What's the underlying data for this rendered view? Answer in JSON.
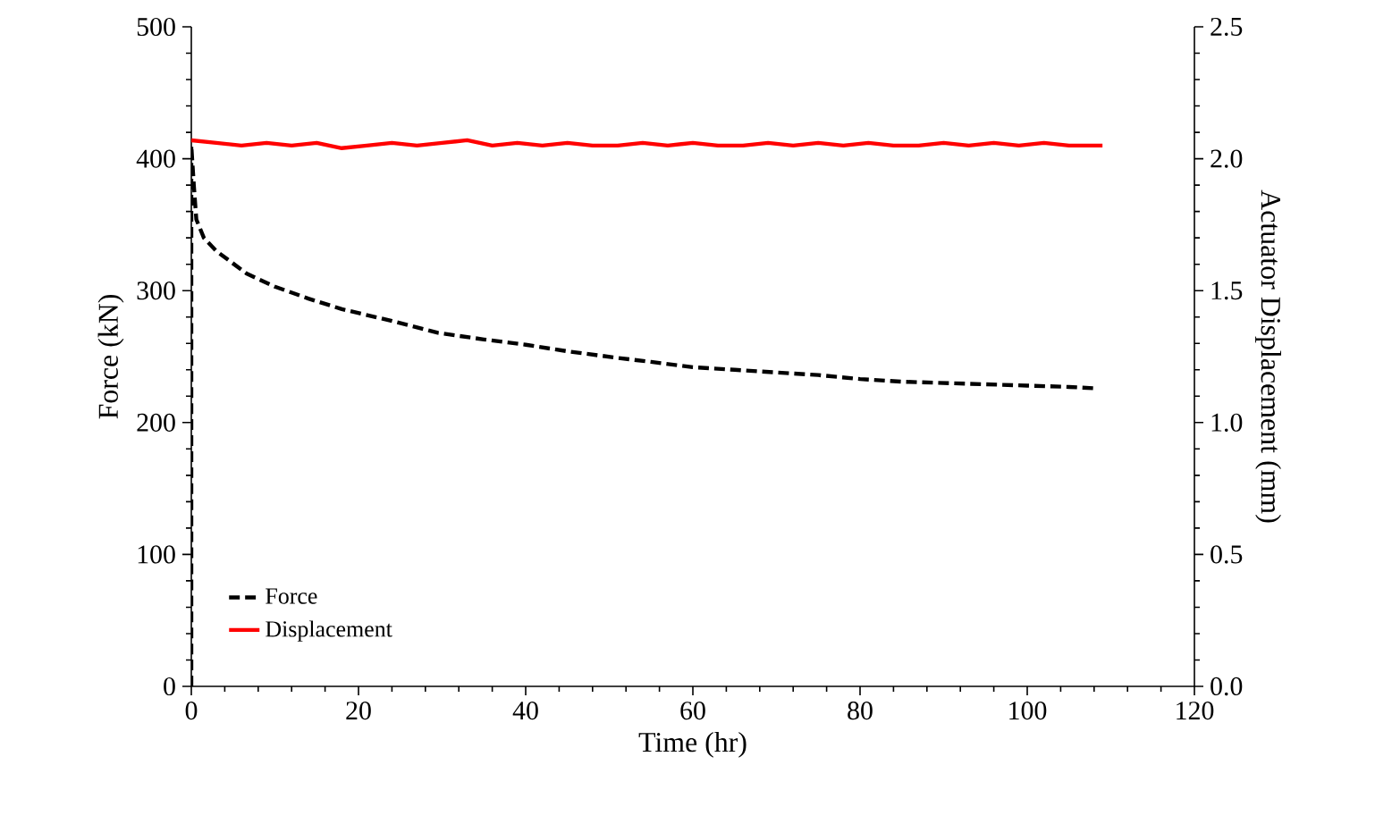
{
  "chart_data": {
    "type": "line",
    "xlabel": "Time (hr)",
    "ylabel": "Force  (kN)",
    "y2label": "Actuator Displacement (mm)",
    "xlim": [
      0,
      120
    ],
    "xticks": [
      0,
      20,
      40,
      60,
      80,
      100,
      120
    ],
    "ylim": [
      0,
      500
    ],
    "yticks": [
      0,
      100,
      200,
      300,
      400,
      500
    ],
    "y2lim": [
      0,
      2.5
    ],
    "y2ticks": [
      {
        "value": 0,
        "label": "0.0"
      },
      0.5,
      {
        "value": 1,
        "label": "1.0"
      },
      1.5,
      {
        "value": 2,
        "label": "2.0"
      },
      2.5
    ],
    "legend": "bottom left",
    "grid": false,
    "series": [
      {
        "name": "Force",
        "color": "#000000",
        "line_style": "dashed",
        "x": [
          0,
          0,
          0.3,
          0.6,
          1.5,
          3,
          6.6,
          10,
          14,
          18,
          24,
          29.5,
          35,
          40,
          45,
          51,
          55,
          60,
          65,
          70,
          75,
          80,
          85,
          90,
          95,
          100,
          105,
          108
        ],
        "values": [
          0,
          410,
          380,
          354,
          340,
          330,
          313,
          303,
          294,
          286,
          277,
          268,
          263,
          259,
          254,
          249,
          246,
          242,
          240,
          238,
          236,
          233,
          231,
          230,
          229,
          228,
          227,
          226
        ]
      },
      {
        "name": "Displacement",
        "color": "#ff0000",
        "line_style": "solid",
        "axis": "y2",
        "x": [
          0,
          3,
          6,
          9,
          12,
          15,
          18,
          21,
          24,
          27,
          30,
          33,
          36,
          39,
          42,
          45,
          48,
          51,
          54,
          57,
          60,
          63,
          66,
          69,
          72,
          75,
          78,
          81,
          84,
          87,
          90,
          93,
          96,
          99,
          102,
          105,
          109
        ],
        "values": [
          2.07,
          2.06,
          2.05,
          2.06,
          2.05,
          2.06,
          2.04,
          2.05,
          2.06,
          2.05,
          2.06,
          2.07,
          2.05,
          2.06,
          2.05,
          2.06,
          2.05,
          2.05,
          2.06,
          2.05,
          2.06,
          2.05,
          2.05,
          2.06,
          2.05,
          2.06,
          2.05,
          2.06,
          2.05,
          2.05,
          2.06,
          2.05,
          2.06,
          2.05,
          2.06,
          2.05,
          2.05
        ]
      }
    ]
  }
}
